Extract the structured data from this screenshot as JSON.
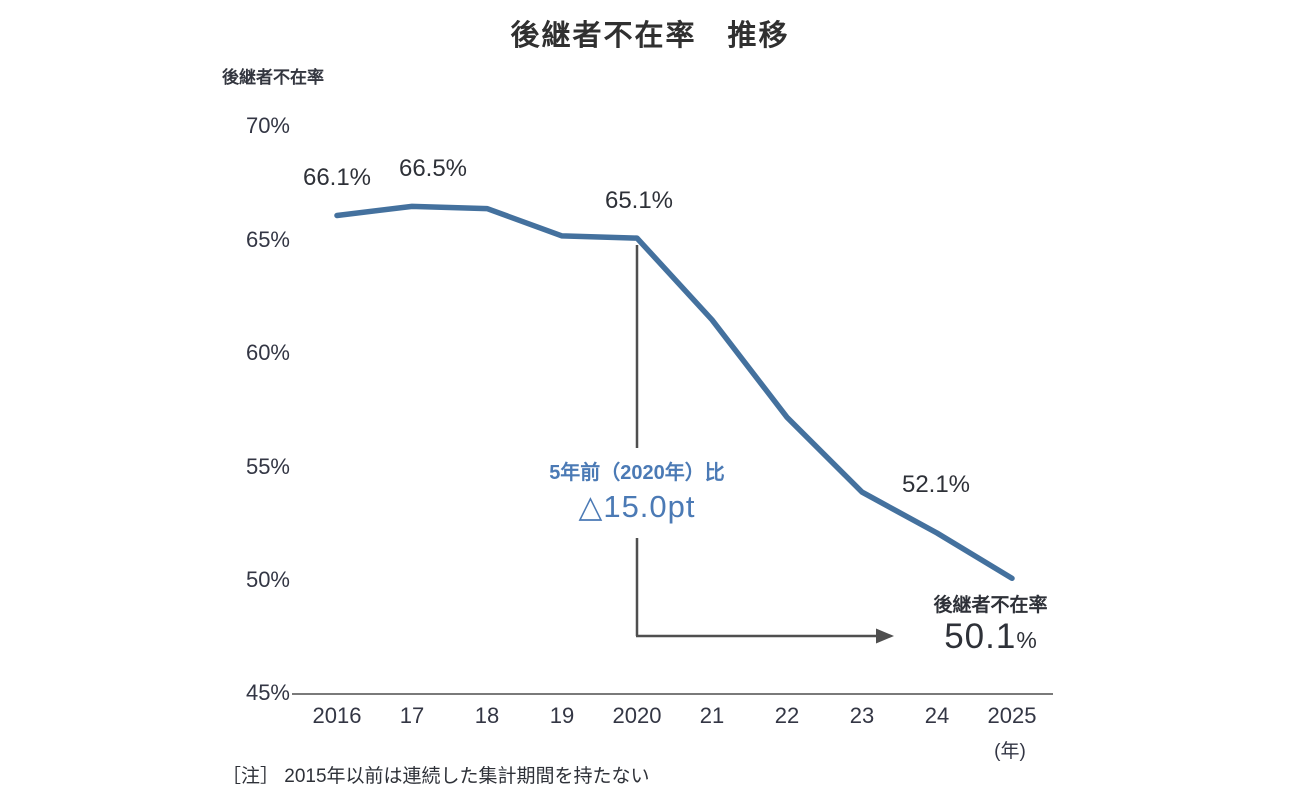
{
  "chart_data": {
    "type": "line",
    "title": "後継者不在率　推移",
    "y_axis_label": "後継者不在率",
    "x_axis_unit": "(年)",
    "categories": [
      "2016",
      "17",
      "18",
      "19",
      "2020",
      "21",
      "22",
      "23",
      "24",
      "2025"
    ],
    "values": [
      66.1,
      66.5,
      66.4,
      65.2,
      65.1,
      61.5,
      57.2,
      53.9,
      52.1,
      50.1
    ],
    "ylim": [
      45,
      70
    ],
    "yticks": [
      "70%",
      "65%",
      "60%",
      "55%",
      "50%",
      "45%"
    ],
    "grid": "off",
    "legend": "none",
    "point_labels": {
      "p2016": "66.1%",
      "p2017": "66.5%",
      "p2020": "65.1%",
      "p2024": "52.1%"
    },
    "annotation": {
      "line1": "5年前（2020年）比",
      "line2": "△15.0pt"
    },
    "end_label": {
      "title": "後継者不在率",
      "value": "50.1",
      "unit": "%"
    },
    "note": "［注］ 2015年以前は連続した集計期間を持たない",
    "colors": {
      "line": "#44719e",
      "annotation": "#4b7ab5",
      "arrow": "#4f4f4f",
      "axis": "#7a7a7a",
      "text": "#2e3138"
    }
  }
}
